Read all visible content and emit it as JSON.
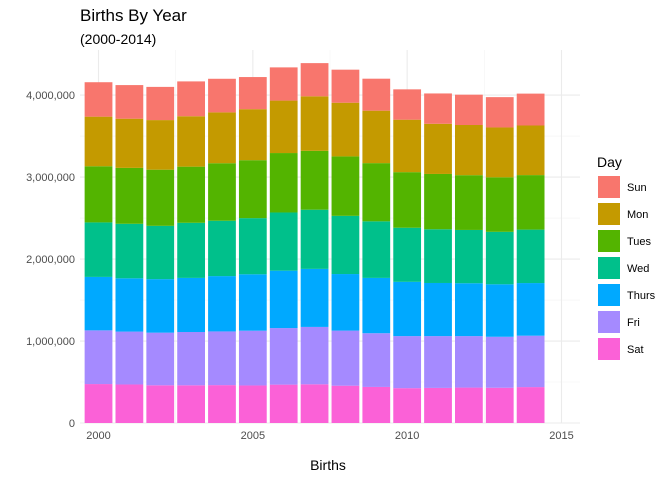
{
  "chart_data": {
    "type": "bar",
    "stacked": true,
    "title": "Births By Year",
    "subtitle": "(2000-2014)",
    "xlabel": "Births",
    "ylabel": "",
    "x": [
      2000,
      2001,
      2002,
      2003,
      2004,
      2005,
      2006,
      2007,
      2008,
      2009,
      2010,
      2011,
      2012,
      2013,
      2014
    ],
    "xticks": [
      "2000",
      "2005",
      "2010",
      "2015"
    ],
    "xtick_values": [
      2000,
      2005,
      2010,
      2015
    ],
    "xlim": [
      1999.4,
      2015.6
    ],
    "yticks": [
      "0",
      "1,000,000",
      "2,000,000",
      "3,000,000",
      "4,000,000"
    ],
    "ytick_values": [
      0,
      1000000,
      2000000,
      3000000,
      4000000
    ],
    "ylim": [
      0,
      4550000
    ],
    "grid": true,
    "legend": {
      "title": "Day",
      "position": "right"
    },
    "series": [
      {
        "name": "Sat",
        "color": "#FB61D7",
        "values": [
          475000,
          470000,
          460000,
          460000,
          462000,
          458000,
          468000,
          472000,
          455000,
          440000,
          425000,
          428000,
          432000,
          430000,
          438000
        ]
      },
      {
        "name": "Fri",
        "color": "#A58AFF",
        "values": [
          655000,
          645000,
          642000,
          650000,
          655000,
          668000,
          690000,
          700000,
          672000,
          655000,
          635000,
          632000,
          628000,
          622000,
          627000
        ]
      },
      {
        "name": "Thurs",
        "color": "#00A9FF",
        "values": [
          652000,
          650000,
          653000,
          660000,
          675000,
          688000,
          700000,
          708000,
          690000,
          675000,
          662000,
          648000,
          645000,
          640000,
          642000
        ]
      },
      {
        "name": "Wed",
        "color": "#00C08B",
        "values": [
          665000,
          665000,
          650000,
          672000,
          675000,
          685000,
          710000,
          722000,
          710000,
          690000,
          660000,
          655000,
          650000,
          640000,
          652000
        ]
      },
      {
        "name": "Tues",
        "color": "#53B400",
        "values": [
          685000,
          682000,
          685000,
          685000,
          702000,
          707000,
          725000,
          718000,
          725000,
          710000,
          678000,
          675000,
          668000,
          665000,
          665000
        ]
      },
      {
        "name": "Mon",
        "color": "#C49A00",
        "values": [
          605000,
          600000,
          605000,
          615000,
          620000,
          622000,
          640000,
          665000,
          655000,
          640000,
          640000,
          612000,
          612000,
          608000,
          605000
        ]
      },
      {
        "name": "Sun",
        "color": "#F8766D",
        "values": [
          420000,
          410000,
          405000,
          425000,
          410000,
          392000,
          405000,
          405000,
          403000,
          390000,
          370000,
          370000,
          370000,
          370000,
          389000
        ]
      }
    ]
  }
}
